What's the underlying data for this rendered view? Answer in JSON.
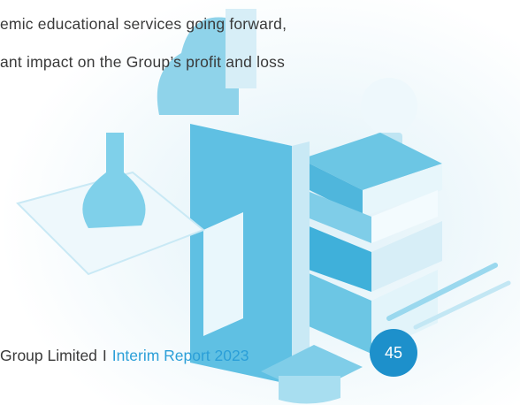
{
  "body": {
    "lines": [
      "emic educational services going forward,",
      "ant impact on the Group’s profit and loss"
    ]
  },
  "footer": {
    "company": "Group Limited",
    "separator": "I",
    "report": "Interim Report 2023",
    "page_number": "45"
  }
}
